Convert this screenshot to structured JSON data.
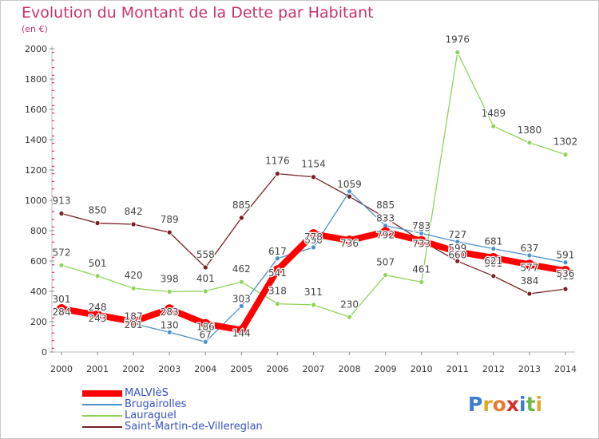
{
  "page": {
    "title": "Evolution du Montant de la Dette par Habitant",
    "subtitle": "(en €)"
  },
  "chart_data": {
    "type": "line",
    "title": "Evolution du Montant de la Dette par Habitant",
    "subtitle": "(en €)",
    "x": [
      "2000",
      "2001",
      "2002",
      "2003",
      "2004",
      "2005",
      "2006",
      "2007",
      "2008",
      "2009",
      "2010",
      "2011",
      "2012",
      "2013",
      "2014"
    ],
    "ylim": [
      0,
      2000
    ],
    "yticks": [
      0,
      200,
      400,
      600,
      800,
      1000,
      1200,
      1400,
      1600,
      1800,
      2000
    ],
    "grid": false,
    "legend_position": "bottom-left",
    "series": [
      {
        "name": "MALVIèS",
        "color": "#ff0000",
        "values": [
          284,
          243,
          201,
          283,
          186,
          144,
          541,
          778,
          736,
          792,
          733,
          660,
          621,
          577,
          536
        ]
      },
      {
        "name": "Brugairolles",
        "color": "#4a90d0",
        "values": [
          301,
          248,
          187,
          130,
          67,
          303,
          617,
          690,
          1059,
          833,
          783,
          727,
          681,
          637,
          591
        ]
      },
      {
        "name": "Lauraguel",
        "color": "#8fd45a",
        "values": [
          572,
          501,
          420,
          398,
          401,
          462,
          318,
          311,
          230,
          507,
          461,
          1976,
          1489,
          1380,
          1302
        ]
      },
      {
        "name": "Saint-Martin-de-Villereglan",
        "color": "#7a1e24",
        "values": [
          913,
          850,
          842,
          789,
          558,
          885,
          1176,
          1154,
          1025,
          885,
          733,
          599,
          501,
          384,
          415
        ]
      }
    ]
  },
  "logo": {
    "letters": [
      "P",
      "r",
      "o",
      "x",
      "i",
      "t",
      "i"
    ],
    "colors": [
      "#3b7bd1",
      "#e0a72e",
      "#e47b2d",
      "#d4302c",
      "#3b7bd1",
      "#6cb84a",
      "#e0a72e"
    ]
  }
}
